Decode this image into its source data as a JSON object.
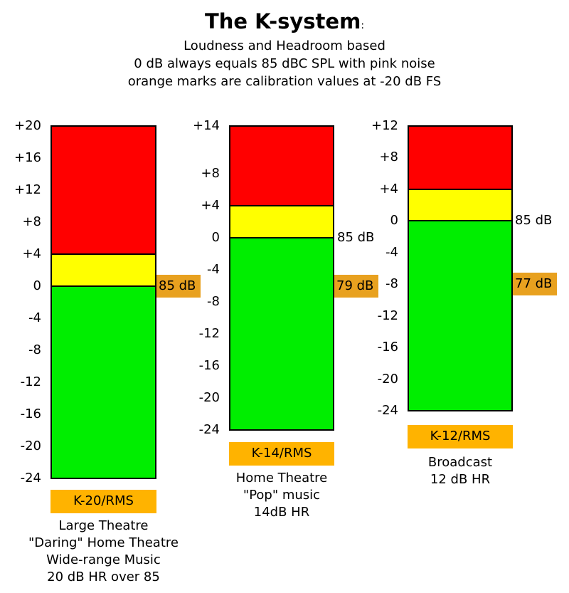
{
  "title": "The K-system",
  "title_suffix": ":",
  "subtitle_lines": [
    "Loudness and Headroom based",
    "0 dB always equals 85 dBC SPL with pink noise",
    "orange marks are calibration values at -20 dB FS"
  ],
  "colors": {
    "red": "#ff0000",
    "yellow": "#ffff00",
    "green": "#00ee00",
    "calibration": "#e8a11f",
    "label_bg": "#ffb300"
  },
  "meters": [
    {
      "id": "k20",
      "max": 20,
      "min": -24,
      "yellow_start": 4,
      "ticks": [
        "+20",
        "+16",
        "+12",
        "+8",
        "+4",
        "0",
        "-4",
        "-8",
        "-12",
        "-16",
        "-20",
        "-24"
      ],
      "tick_values": [
        20,
        16,
        12,
        8,
        4,
        0,
        -4,
        -8,
        -12,
        -16,
        -20,
        -24
      ],
      "calibration": {
        "label": "85 dB",
        "value": 0
      },
      "name": "K-20/RMS",
      "description": [
        "Large Theatre",
        "\"Daring\" Home Theatre",
        "Wide-range Music",
        "20 dB HR over 85"
      ]
    },
    {
      "id": "k14",
      "max": 14,
      "min": -24,
      "yellow_start": 4,
      "ticks": [
        "+14",
        "+8",
        "+4",
        "0",
        "-4",
        "-8",
        "-12",
        "-16",
        "-20",
        "-24"
      ],
      "tick_values": [
        14,
        8,
        4,
        0,
        -4,
        -8,
        -12,
        -16,
        -20,
        -24
      ],
      "zero_mark": "85 dB",
      "calibration": {
        "label": "79 dB",
        "value": -6
      },
      "name": "K-14/RMS",
      "description": [
        "Home Theatre",
        "\"Pop\" music",
        "14dB HR"
      ]
    },
    {
      "id": "k12",
      "max": 12,
      "min": -24,
      "yellow_start": 4,
      "ticks": [
        "+12",
        "+8",
        "+4",
        "0",
        "-4",
        "-8",
        "-12",
        "-16",
        "-20",
        "-24"
      ],
      "tick_values": [
        12,
        8,
        4,
        0,
        -4,
        -8,
        -12,
        -16,
        -20,
        -24
      ],
      "zero_mark": "85 dB",
      "calibration": {
        "label": "77 dB",
        "value": -8
      },
      "name": "K-12/RMS",
      "description": [
        "Broadcast",
        "12 dB HR"
      ]
    }
  ]
}
